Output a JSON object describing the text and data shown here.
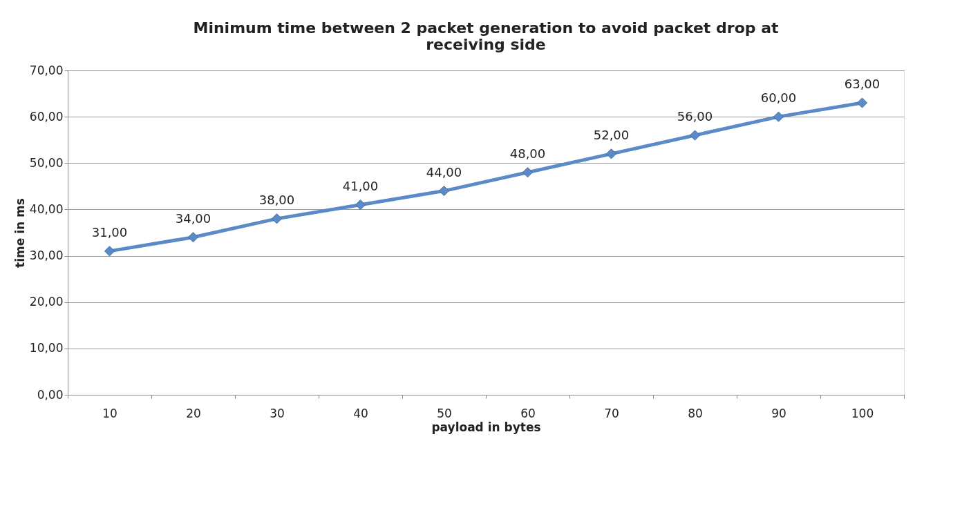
{
  "chart_data": {
    "type": "line",
    "title": "Minimum time between 2 packet generation to avoid packet drop at receiving side",
    "xlabel": "payload in bytes",
    "ylabel": "time in ms",
    "categories": [
      "10",
      "20",
      "30",
      "40",
      "50",
      "60",
      "70",
      "80",
      "90",
      "100"
    ],
    "series": [
      {
        "color": "#5b8ac6",
        "values": [
          31,
          34,
          38,
          41,
          44,
          48,
          52,
          56,
          60,
          63
        ],
        "value_labels": [
          "31,00",
          "34,00",
          "38,00",
          "41,00",
          "44,00",
          "48,00",
          "52,00",
          "56,00",
          "60,00",
          "63,00"
        ]
      }
    ],
    "ylim": [
      0,
      70
    ],
    "yticks": [
      {
        "value": 0,
        "label": "0,00"
      },
      {
        "value": 10,
        "label": "10,00"
      },
      {
        "value": 20,
        "label": "20,00"
      },
      {
        "value": 30,
        "label": "30,00"
      },
      {
        "value": 40,
        "label": "40,00"
      },
      {
        "value": 50,
        "label": "50,00"
      },
      {
        "value": 60,
        "label": "60,00"
      },
      {
        "value": 70,
        "label": "70,00"
      }
    ],
    "grid": "y",
    "marker": "diamond",
    "line_style": "solid"
  }
}
